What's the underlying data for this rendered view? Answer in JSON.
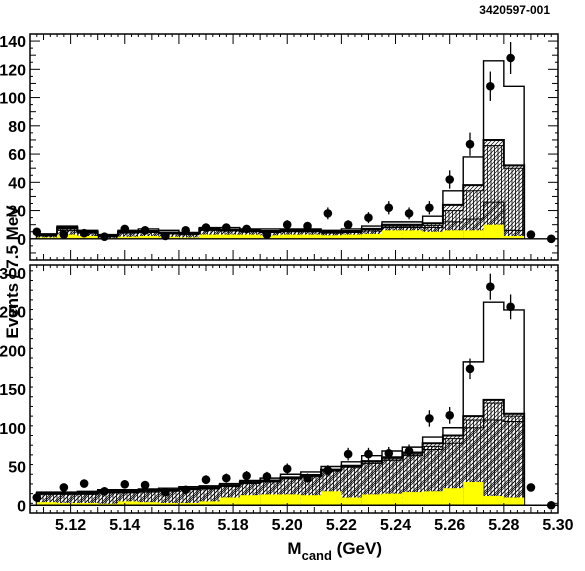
{
  "figure_id": "3420597-001",
  "chart_data": [
    {
      "type": "histogram",
      "panel": "top",
      "bin_edges": [
        5.1075,
        5.115,
        5.1225,
        5.13,
        5.1375,
        5.145,
        5.1525,
        5.16,
        5.1675,
        5.175,
        5.1825,
        5.19,
        5.1975,
        5.205,
        5.2125,
        5.22,
        5.2275,
        5.235,
        5.2425,
        5.25,
        5.2575,
        5.265,
        5.2725,
        5.28,
        5.2875
      ],
      "ylim": [
        -15,
        145
      ],
      "yticks": [
        0,
        20,
        40,
        60,
        80,
        100,
        120,
        140
      ],
      "ytick_labels": [
        "0",
        "20",
        "40",
        "60",
        "80",
        "100",
        "120",
        "140"
      ],
      "series": [
        {
          "name": "",
          "style": "yellow-fill",
          "values": [
            1,
            3,
            2,
            0.5,
            1.5,
            2,
            1.5,
            1,
            3,
            3,
            3,
            2.5,
            3,
            3,
            2.5,
            3,
            3.5,
            6,
            6,
            5,
            6,
            6,
            10,
            2
          ]
        },
        {
          "name": "",
          "style": "diagonal-hatch",
          "values": [
            2,
            6,
            4,
            1.5,
            4,
            4.5,
            3.5,
            3,
            6,
            5.5,
            5,
            4.5,
            5,
            5,
            4,
            4.5,
            5.5,
            8,
            8,
            8,
            12,
            14,
            26,
            6
          ]
        },
        {
          "name": "",
          "style": "vertical-hatch",
          "values": [
            2.5,
            7,
            4.5,
            2,
            4.5,
            5,
            4,
            3.5,
            6.5,
            6,
            5.5,
            5,
            5.5,
            5.5,
            4.5,
            5,
            6.5,
            9,
            9,
            9.5,
            20,
            34,
            66,
            50
          ]
        },
        {
          "name": "",
          "style": "outline-thick",
          "values": [
            3,
            8,
            5,
            2.5,
            5,
            5.5,
            4.5,
            4,
            7,
            6.5,
            6,
            5.5,
            6,
            6,
            5,
            5.5,
            7,
            10,
            10,
            11,
            24,
            38,
            70,
            52
          ]
        },
        {
          "name": "",
          "style": "outline-total",
          "values": [
            3.5,
            9,
            6,
            3,
            6,
            7,
            6,
            4.5,
            8,
            8,
            7,
            7,
            7,
            7,
            6,
            7,
            9,
            12,
            12,
            16,
            34,
            58,
            126,
            108
          ]
        }
      ],
      "data_points": {
        "x": [
          5.1075,
          5.1175,
          5.125,
          5.1325,
          5.14,
          5.1475,
          5.155,
          5.1625,
          5.17,
          5.1775,
          5.185,
          5.1925,
          5.2,
          5.2075,
          5.215,
          5.2225,
          5.23,
          5.2375,
          5.245,
          5.2525,
          5.26,
          5.2675,
          5.275,
          5.2825,
          5.29,
          5.2975
        ],
        "y": [
          5,
          3,
          4,
          1.5,
          7,
          6,
          2,
          6,
          8,
          8,
          7,
          3,
          10,
          9,
          18,
          10,
          15,
          22,
          18,
          22,
          42,
          67,
          108,
          128,
          3,
          0
        ],
        "err": [
          2.2,
          1.7,
          2,
          1.2,
          2.6,
          2.4,
          1.4,
          2.4,
          2.8,
          2.8,
          2.6,
          1.7,
          3.2,
          3,
          4.2,
          3.2,
          3.9,
          4.7,
          4.2,
          4.7,
          6.5,
          8.2,
          10.4,
          11.3,
          1.7,
          1
        ]
      }
    },
    {
      "type": "histogram",
      "panel": "bottom",
      "bin_edges": [
        5.1075,
        5.115,
        5.1225,
        5.13,
        5.1375,
        5.145,
        5.1525,
        5.16,
        5.1675,
        5.175,
        5.1825,
        5.19,
        5.1975,
        5.205,
        5.2125,
        5.22,
        5.2275,
        5.235,
        5.2425,
        5.25,
        5.2575,
        5.265,
        5.2725,
        5.28,
        5.2875
      ],
      "ylim": [
        -10,
        310
      ],
      "yticks": [
        0,
        50,
        100,
        150,
        200,
        250,
        300
      ],
      "ytick_labels": [
        "0",
        "50",
        "100",
        "150",
        "200",
        "250",
        "300"
      ],
      "series": [
        {
          "name": "",
          "style": "yellow-fill",
          "values": [
            4,
            3,
            3,
            2,
            5,
            4,
            3,
            3,
            5,
            10,
            13,
            14,
            14,
            13,
            18,
            10,
            14,
            15,
            17,
            18,
            22,
            30,
            12,
            10
          ]
        },
        {
          "name": "",
          "style": "diagonal-hatch",
          "values": [
            14,
            14,
            14,
            16,
            16,
            17,
            18,
            20,
            21,
            24,
            28,
            30,
            34,
            37,
            44,
            49,
            54,
            58,
            64,
            72,
            80,
            100,
            110,
            108
          ]
        },
        {
          "name": "",
          "style": "vertical-hatch",
          "values": [
            15,
            15,
            15,
            17,
            17,
            18,
            19,
            21,
            22,
            25,
            29,
            31,
            35,
            38,
            45,
            50,
            56,
            60,
            66,
            76,
            86,
            110,
            132,
            115
          ]
        },
        {
          "name": "",
          "style": "outline-thick",
          "values": [
            16,
            16,
            16,
            18,
            18,
            19,
            20,
            22,
            23,
            26,
            30,
            32,
            36,
            39,
            46,
            51,
            57,
            62,
            68,
            80,
            90,
            115,
            136,
            118
          ]
        },
        {
          "name": "",
          "style": "outline-total",
          "values": [
            17,
            17,
            18,
            20,
            20,
            21,
            22,
            24,
            25,
            28,
            32,
            35,
            40,
            43,
            50,
            56,
            64,
            70,
            75,
            88,
            100,
            185,
            262,
            252
          ]
        }
      ],
      "data_points": {
        "x": [
          5.1075,
          5.1175,
          5.125,
          5.1325,
          5.14,
          5.1475,
          5.155,
          5.1625,
          5.17,
          5.1775,
          5.185,
          5.1925,
          5.2,
          5.2075,
          5.215,
          5.2225,
          5.23,
          5.2375,
          5.245,
          5.2525,
          5.26,
          5.2675,
          5.275,
          5.2825,
          5.29,
          5.2975
        ],
        "y": [
          10,
          23,
          28,
          18,
          27,
          26,
          17,
          20,
          33,
          35,
          38,
          37,
          47,
          35,
          45,
          66,
          66,
          67,
          70,
          112,
          116,
          176,
          282,
          256,
          23,
          0
        ],
        "err": [
          3.2,
          4.8,
          5.3,
          4.2,
          5.2,
          5.1,
          4.1,
          4.5,
          5.7,
          5.9,
          6.2,
          6.1,
          6.9,
          5.9,
          6.7,
          8.1,
          8.1,
          8.2,
          8.4,
          10.6,
          10.8,
          13.3,
          16.8,
          16,
          4.8,
          1.5
        ]
      }
    }
  ],
  "axes": {
    "ylabel": "Events / 7.5 MeV",
    "xlabel_main": "M",
    "xlabel_sub": "cand",
    "xlabel_unit": " (GeV)",
    "xlim": [
      5.105,
      5.3
    ],
    "xticks": [
      5.12,
      5.14,
      5.16,
      5.18,
      5.2,
      5.22,
      5.24,
      5.26,
      5.28,
      5.3
    ],
    "xtick_labels": [
      "5.12",
      "5.14",
      "5.16",
      "5.18",
      "5.20",
      "5.22",
      "5.24",
      "5.26",
      "5.28",
      "5.30"
    ]
  },
  "colors": {
    "yellow": "#ffff00",
    "line": "#000000"
  }
}
